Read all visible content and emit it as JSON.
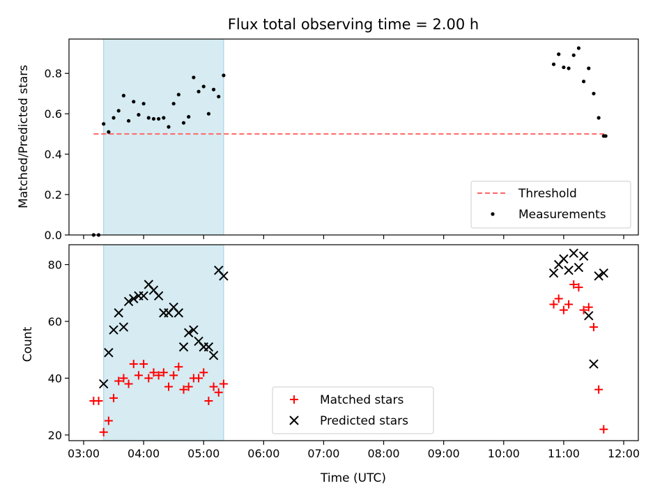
{
  "chart_data": [
    {
      "type": "scatter",
      "title": "Flux total observing time = 2.00 h",
      "xlabel": "",
      "ylabel": "Matched/Predicted stars",
      "x_unit": "time (UTC, hours)",
      "xlim": [
        "03:00",
        "12:00"
      ],
      "ylim": [
        0,
        0.97
      ],
      "yticks": [
        "0.0",
        "0.2",
        "0.4",
        "0.6",
        "0.8"
      ],
      "shaded_span": [
        "03:20",
        "05:20"
      ],
      "shaded_color": "#add8e6",
      "grid": false,
      "legend_position": "lower-right",
      "series": [
        {
          "name": "Threshold",
          "kind": "line",
          "style": "dashed",
          "color": "#ff6666",
          "x": [
            "03:10",
            "11:42"
          ],
          "y": [
            0.5,
            0.5
          ]
        },
        {
          "name": "Measurements",
          "kind": "points",
          "color": "#000000",
          "x": [
            "03:10",
            "03:15",
            "03:20",
            "03:25",
            "03:30",
            "03:35",
            "03:40",
            "03:45",
            "03:50",
            "03:55",
            "04:00",
            "04:05",
            "04:10",
            "04:15",
            "04:20",
            "04:25",
            "04:30",
            "04:35",
            "04:40",
            "04:45",
            "04:50",
            "04:55",
            "05:00",
            "05:05",
            "05:10",
            "05:15",
            "05:20",
            "10:50",
            "10:55",
            "11:00",
            "11:05",
            "11:10",
            "11:15",
            "11:20",
            "11:25",
            "11:30",
            "11:35",
            "11:40",
            "11:42"
          ],
          "y": [
            0.0,
            0.0,
            0.55,
            0.51,
            0.58,
            0.615,
            0.69,
            0.565,
            0.66,
            0.595,
            0.65,
            0.58,
            0.575,
            0.575,
            0.58,
            0.535,
            0.65,
            0.695,
            0.555,
            0.585,
            0.78,
            0.71,
            0.735,
            0.6,
            0.72,
            0.685,
            0.79,
            0.845,
            0.895,
            0.83,
            0.825,
            0.89,
            0.925,
            0.76,
            0.825,
            0.7,
            0.58,
            0.49,
            0.49
          ]
        }
      ]
    },
    {
      "type": "scatter",
      "title": "",
      "xlabel": "Time (UTC)",
      "ylabel": "Count",
      "x_unit": "time (UTC, hours)",
      "xlim": [
        "03:00",
        "12:00"
      ],
      "xticks": [
        "03:00",
        "04:00",
        "05:00",
        "06:00",
        "07:00",
        "08:00",
        "09:00",
        "10:00",
        "11:00",
        "12:00"
      ],
      "ylim": [
        18,
        87
      ],
      "yticks": [
        "20",
        "40",
        "60",
        "80"
      ],
      "shaded_span": [
        "03:20",
        "05:20"
      ],
      "shaded_color": "#add8e6",
      "grid": false,
      "legend_position": "bottom-center",
      "series": [
        {
          "name": "Matched stars",
          "marker": "+",
          "color": "#ff0000",
          "x": [
            "03:10",
            "03:15",
            "03:20",
            "03:25",
            "03:30",
            "03:35",
            "03:40",
            "03:45",
            "03:50",
            "03:55",
            "04:00",
            "04:05",
            "04:10",
            "04:15",
            "04:20",
            "04:25",
            "04:30",
            "04:35",
            "04:40",
            "04:45",
            "04:50",
            "04:55",
            "05:00",
            "05:05",
            "05:10",
            "05:15",
            "05:20",
            "10:50",
            "10:55",
            "11:00",
            "11:05",
            "11:10",
            "11:15",
            "11:20",
            "11:25",
            "11:30",
            "11:35",
            "11:40"
          ],
          "y": [
            32,
            32,
            21,
            25,
            33,
            39,
            40,
            38,
            45,
            41,
            45,
            40,
            42,
            41,
            42,
            37,
            41,
            44,
            36,
            37,
            40,
            40,
            42,
            32,
            37,
            35,
            38,
            66,
            68,
            64,
            66,
            73,
            72,
            64,
            65,
            58,
            36,
            22
          ]
        },
        {
          "name": "Predicted stars",
          "marker": "x",
          "color": "#000000",
          "x": [
            "03:20",
            "03:25",
            "03:30",
            "03:35",
            "03:40",
            "03:45",
            "03:50",
            "03:55",
            "04:00",
            "04:05",
            "04:10",
            "04:15",
            "04:20",
            "04:25",
            "04:30",
            "04:35",
            "04:40",
            "04:45",
            "04:50",
            "04:55",
            "05:00",
            "05:05",
            "05:10",
            "05:15",
            "05:20",
            "10:50",
            "10:55",
            "11:00",
            "11:05",
            "11:10",
            "11:15",
            "11:20",
            "11:25",
            "11:30",
            "11:35",
            "11:40"
          ],
          "y": [
            38,
            49,
            57,
            63,
            58,
            67,
            68,
            69,
            69,
            73,
            71,
            69,
            63,
            63,
            65,
            63,
            51,
            56,
            57,
            53,
            51,
            51,
            48,
            78,
            76,
            77,
            80,
            82,
            78,
            84,
            79,
            83,
            62,
            45,
            76,
            77
          ]
        }
      ]
    }
  ]
}
